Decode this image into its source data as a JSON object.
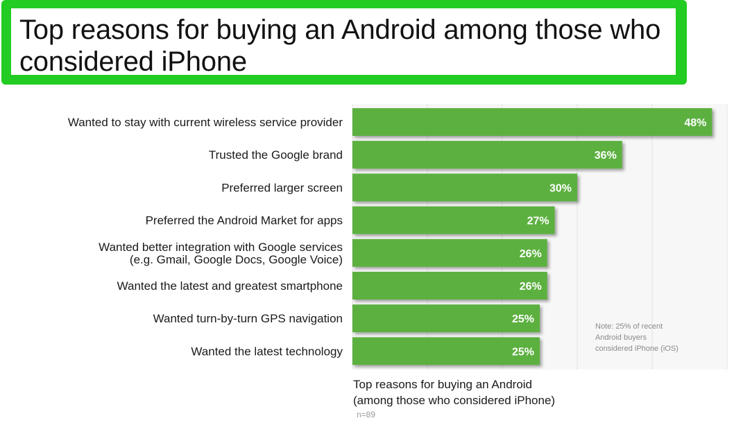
{
  "title": "Top reasons for buying an Android among those who considered iPhone",
  "chart_data": {
    "type": "bar",
    "orientation": "horizontal",
    "categories": [
      [
        "Wanted to stay with current wireless service provider"
      ],
      [
        "Trusted the Google brand"
      ],
      [
        "Preferred larger screen"
      ],
      [
        "Preferred the Android Market for apps"
      ],
      [
        "Wanted better integration with Google services",
        "(e.g. Gmail, Google Docs, Google Voice)"
      ],
      [
        "Wanted the latest and greatest smartphone"
      ],
      [
        "Wanted turn-by-turn GPS navigation"
      ],
      [
        "Wanted the latest technology"
      ]
    ],
    "values": [
      48,
      36,
      30,
      27,
      26,
      26,
      25,
      25
    ],
    "value_labels": [
      "48%",
      "36%",
      "30%",
      "27%",
      "26%",
      "26%",
      "25%",
      "25%"
    ],
    "xlim": [
      0,
      50
    ],
    "grid": "vertical",
    "bar_color": "#5cb040",
    "note": [
      "Note: 25% of recent",
      "Android buyers",
      "considered iPhone (iOS)"
    ],
    "caption": [
      "Top reasons for buying an Android",
      "(among those who considered iPhone)"
    ],
    "sample": "n=89"
  }
}
